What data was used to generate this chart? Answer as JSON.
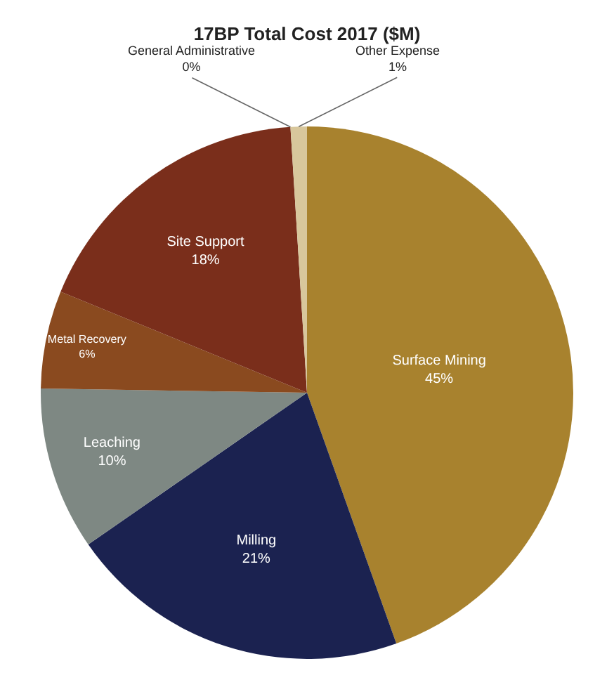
{
  "chart_data": {
    "type": "pie",
    "title": "17BP Total Cost 2017 ($M)",
    "categories": [
      "Surface Mining",
      "Milling",
      "Leaching",
      "Metal Recovery",
      "Site Support",
      "General Administrative",
      "Other Expense"
    ],
    "values": [
      45,
      21,
      10,
      6,
      18,
      0,
      1
    ],
    "value_labels": [
      "45%",
      "21%",
      "10%",
      "6%",
      "18%",
      "0%",
      "1%"
    ],
    "colors": [
      "#a8822e",
      "#1b2250",
      "#7e8883",
      "#8a4a1f",
      "#7a2e1b",
      "#6e2a1a",
      "#d8c79c"
    ],
    "legend": false
  }
}
